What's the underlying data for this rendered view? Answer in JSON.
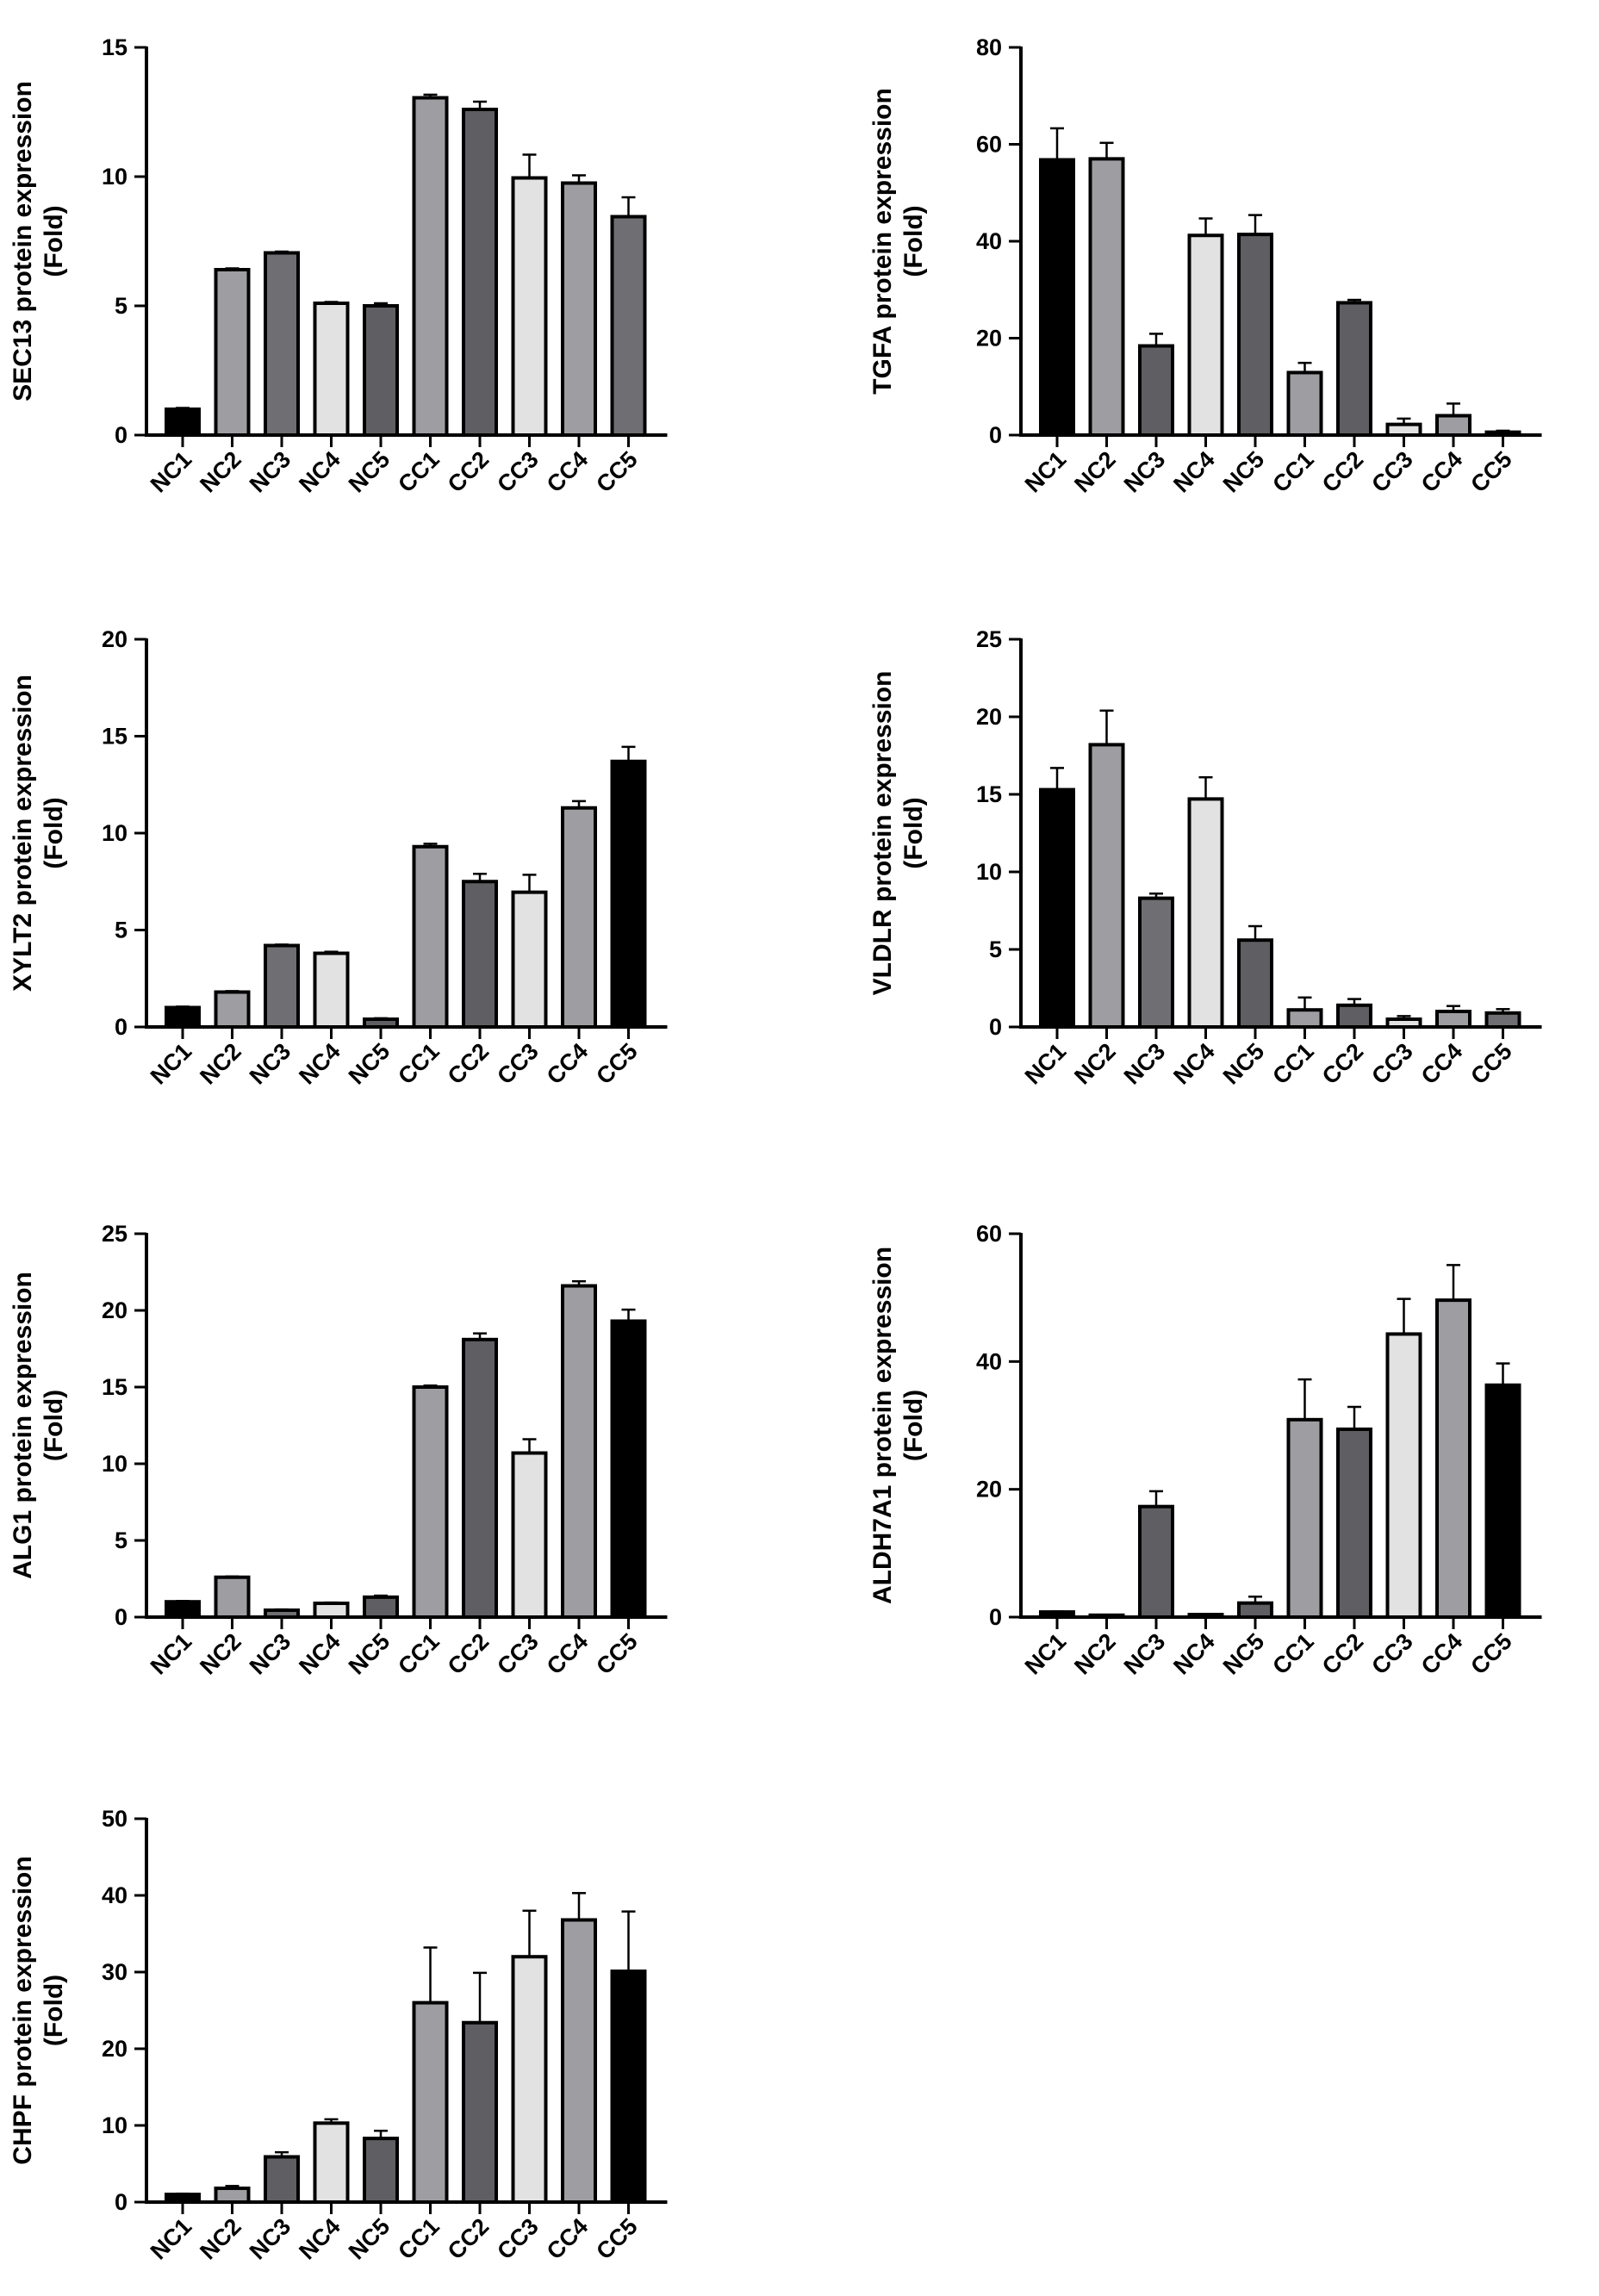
{
  "categories": [
    "NC1",
    "NC2",
    "NC3",
    "NC4",
    "NC5",
    "CC1",
    "CC2",
    "CC3",
    "CC4",
    "CC5"
  ],
  "colors": {
    "black": "#000000",
    "mid_gray": "#9e9ea2",
    "dark_gray": "#6f6f73",
    "light_gray": "#e2e2e2",
    "darker_gray": "#5f5f63"
  },
  "chart_data": [
    {
      "type": "bar",
      "ylabel_line1": "SEC13 protein expression",
      "ylabel_line2": "(Fold)",
      "ylim": [
        0,
        15
      ],
      "yticks": [
        0,
        5,
        10,
        15
      ],
      "categories": [
        "NC1",
        "NC2",
        "NC3",
        "NC4",
        "NC5",
        "CC1",
        "CC2",
        "CC3",
        "CC4",
        "CC5"
      ],
      "values": [
        1.0,
        6.4,
        7.05,
        5.1,
        5.0,
        13.05,
        12.6,
        9.95,
        9.75,
        8.45
      ],
      "errors": [
        0.05,
        0.05,
        0.05,
        0.05,
        0.1,
        0.12,
        0.3,
        0.9,
        0.3,
        0.75
      ],
      "bar_colors": [
        "black",
        "mid_gray",
        "dark_gray",
        "light_gray",
        "darker_gray",
        "mid_gray",
        "darker_gray",
        "light_gray",
        "mid_gray",
        "dark_gray"
      ]
    },
    {
      "type": "bar",
      "ylabel_line1": "TGFA protein expression",
      "ylabel_line2": "(Fold)",
      "ylim": [
        0,
        80
      ],
      "yticks": [
        0,
        20,
        40,
        60,
        80
      ],
      "categories": [
        "NC1",
        "NC2",
        "NC3",
        "NC4",
        "NC5",
        "CC1",
        "CC2",
        "CC3",
        "CC4",
        "CC5"
      ],
      "values": [
        56.8,
        57.0,
        18.4,
        41.2,
        41.4,
        12.9,
        27.3,
        2.2,
        4.0,
        0.6
      ],
      "errors": [
        6.5,
        3.3,
        2.5,
        3.5,
        4.0,
        2.0,
        0.6,
        1.2,
        2.5,
        0.3
      ],
      "bar_colors": [
        "black",
        "mid_gray",
        "darker_gray",
        "light_gray",
        "darker_gray",
        "mid_gray",
        "darker_gray",
        "light_gray",
        "mid_gray",
        "dark_gray"
      ]
    },
    {
      "type": "bar",
      "ylabel_line1": "XYLT2 protein expression",
      "ylabel_line2": "(Fold)",
      "ylim": [
        0,
        20
      ],
      "yticks": [
        0,
        5,
        10,
        15,
        20
      ],
      "categories": [
        "NC1",
        "NC2",
        "NC3",
        "NC4",
        "NC5",
        "CC1",
        "CC2",
        "CC3",
        "CC4",
        "CC5"
      ],
      "values": [
        1.0,
        1.8,
        4.2,
        3.8,
        0.4,
        9.3,
        7.5,
        6.95,
        11.3,
        13.7
      ],
      "errors": [
        0.05,
        0.05,
        0.05,
        0.08,
        0.05,
        0.15,
        0.4,
        0.9,
        0.35,
        0.75
      ],
      "bar_colors": [
        "black",
        "mid_gray",
        "dark_gray",
        "light_gray",
        "darker_gray",
        "mid_gray",
        "darker_gray",
        "light_gray",
        "mid_gray",
        "black"
      ]
    },
    {
      "type": "bar",
      "ylabel_line1": "VLDLR protein expression",
      "ylabel_line2": "(Fold)",
      "ylim": [
        0,
        25
      ],
      "yticks": [
        0,
        5,
        10,
        15,
        20,
        25
      ],
      "categories": [
        "NC1",
        "NC2",
        "NC3",
        "NC4",
        "NC5",
        "CC1",
        "CC2",
        "CC3",
        "CC4",
        "CC5"
      ],
      "values": [
        15.3,
        18.2,
        8.3,
        14.7,
        5.6,
        1.1,
        1.4,
        0.5,
        1.0,
        0.9
      ],
      "errors": [
        1.4,
        2.2,
        0.3,
        1.4,
        0.9,
        0.8,
        0.4,
        0.2,
        0.35,
        0.25
      ],
      "bar_colors": [
        "black",
        "mid_gray",
        "dark_gray",
        "light_gray",
        "darker_gray",
        "mid_gray",
        "darker_gray",
        "light_gray",
        "mid_gray",
        "dark_gray"
      ]
    },
    {
      "type": "bar",
      "ylabel_line1": "ALG1 protein expression",
      "ylabel_line2": "(Fold)",
      "ylim": [
        0,
        25
      ],
      "yticks": [
        0,
        5,
        10,
        15,
        20,
        25
      ],
      "categories": [
        "NC1",
        "NC2",
        "NC3",
        "NC4",
        "NC5",
        "CC1",
        "CC2",
        "CC3",
        "CC4",
        "CC5"
      ],
      "values": [
        1.0,
        2.6,
        0.45,
        0.9,
        1.3,
        15.0,
        18.1,
        10.7,
        21.6,
        19.3
      ],
      "errors": [
        0.05,
        0.05,
        0.05,
        0.05,
        0.1,
        0.1,
        0.4,
        0.9,
        0.3,
        0.75
      ],
      "bar_colors": [
        "black",
        "mid_gray",
        "dark_gray",
        "light_gray",
        "darker_gray",
        "mid_gray",
        "darker_gray",
        "light_gray",
        "mid_gray",
        "black"
      ]
    },
    {
      "type": "bar",
      "ylabel_line1": "ALDH7A1 protein expression",
      "ylabel_line2": "(Fold)",
      "ylim": [
        0,
        60
      ],
      "yticks": [
        0,
        20,
        40,
        60
      ],
      "categories": [
        "NC1",
        "NC2",
        "NC3",
        "NC4",
        "NC5",
        "CC1",
        "CC2",
        "CC3",
        "CC4",
        "CC5"
      ],
      "values": [
        0.8,
        0.3,
        17.3,
        0.4,
        2.2,
        30.9,
        29.4,
        44.3,
        49.6,
        36.3
      ],
      "errors": [
        0.1,
        0.05,
        2.4,
        0.1,
        1.0,
        6.3,
        3.5,
        5.5,
        5.5,
        3.4
      ],
      "bar_colors": [
        "black",
        "mid_gray",
        "darker_gray",
        "light_gray",
        "darker_gray",
        "mid_gray",
        "darker_gray",
        "light_gray",
        "mid_gray",
        "black"
      ]
    },
    {
      "type": "bar",
      "ylabel_line1": "CHPF protein expression",
      "ylabel_line2": "(Fold)",
      "ylim": [
        0,
        50
      ],
      "yticks": [
        0,
        10,
        20,
        30,
        40,
        50
      ],
      "categories": [
        "NC1",
        "NC2",
        "NC3",
        "NC4",
        "NC5",
        "CC1",
        "CC2",
        "CC3",
        "CC4",
        "CC5"
      ],
      "values": [
        1.0,
        1.8,
        5.9,
        10.3,
        8.3,
        26.0,
        23.4,
        32.0,
        36.8,
        30.1
      ],
      "errors": [
        0.1,
        0.3,
        0.6,
        0.5,
        1.0,
        7.2,
        6.5,
        6.0,
        3.5,
        7.8
      ],
      "bar_colors": [
        "black",
        "mid_gray",
        "darker_gray",
        "light_gray",
        "darker_gray",
        "mid_gray",
        "darker_gray",
        "light_gray",
        "mid_gray",
        "black"
      ]
    }
  ]
}
